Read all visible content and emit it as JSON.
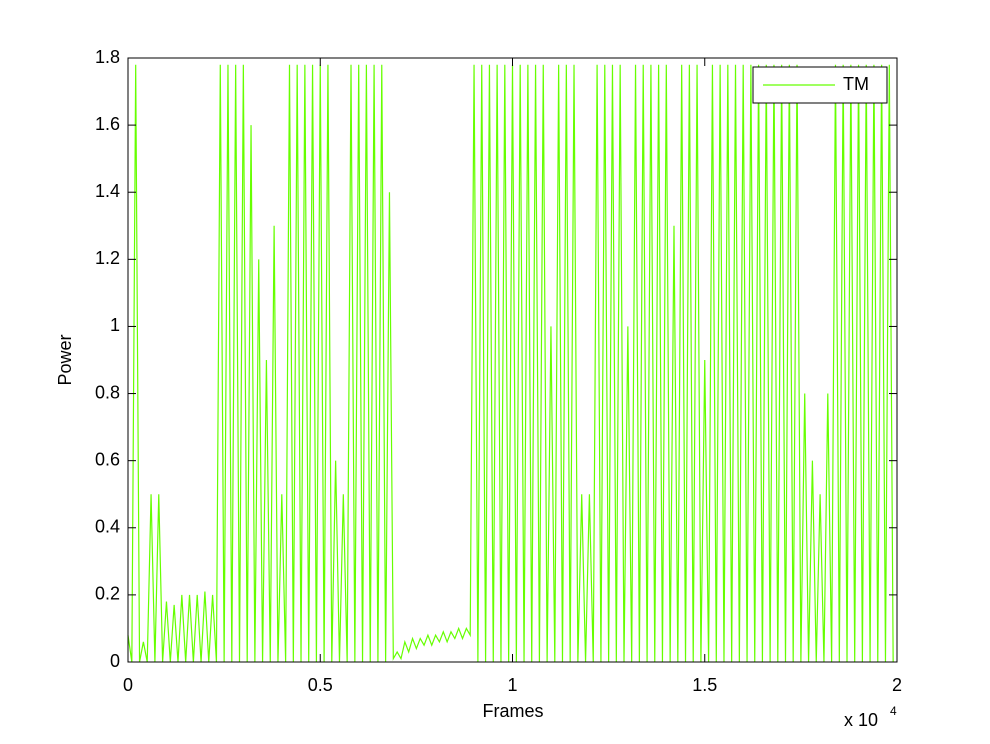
{
  "chart_data": {
    "type": "line",
    "xlabel": "Frames",
    "ylabel": "Power",
    "x_multiplier": "x 10",
    "x_multiplier_exp": "4",
    "x": [
      0,
      100,
      200,
      300,
      400,
      500,
      600,
      700,
      800,
      900,
      1000,
      1100,
      1200,
      1300,
      1400,
      1500,
      1600,
      1700,
      1800,
      1900,
      2000,
      2100,
      2200,
      2300,
      2400,
      2500,
      2600,
      2700,
      2800,
      2900,
      3000,
      3100,
      3200,
      3300,
      3400,
      3500,
      3600,
      3700,
      3800,
      3900,
      4000,
      4100,
      4200,
      4300,
      4400,
      4500,
      4600,
      4700,
      4800,
      4900,
      5000,
      5100,
      5200,
      5300,
      5400,
      5500,
      5600,
      5700,
      5800,
      5900,
      6000,
      6100,
      6200,
      6300,
      6400,
      6500,
      6600,
      6700,
      6800,
      6900,
      7000,
      7100,
      7200,
      7300,
      7400,
      7500,
      7600,
      7700,
      7800,
      7900,
      8000,
      8100,
      8200,
      8300,
      8400,
      8500,
      8600,
      8700,
      8800,
      8900,
      9000,
      9100,
      9200,
      9300,
      9400,
      9500,
      9600,
      9700,
      9800,
      9900,
      10000,
      10100,
      10200,
      10300,
      10400,
      10500,
      10600,
      10700,
      10800,
      10900,
      11000,
      11100,
      11200,
      11300,
      11400,
      11500,
      11600,
      11700,
      11800,
      11900,
      12000,
      12100,
      12200,
      12300,
      12400,
      12500,
      12600,
      12700,
      12800,
      12900,
      13000,
      13100,
      13200,
      13300,
      13400,
      13500,
      13600,
      13700,
      13800,
      13900,
      14000,
      14100,
      14200,
      14300,
      14400,
      14500,
      14600,
      14700,
      14800,
      14900,
      15000,
      15100,
      15200,
      15300,
      15400,
      15500,
      15600,
      15700,
      15800,
      15900,
      16000,
      16100,
      16200,
      16300,
      16400,
      16500,
      16600,
      16700,
      16800,
      16900,
      17000,
      17100,
      17200,
      17300,
      17400,
      17500,
      17600,
      17700,
      17800,
      17900,
      18000,
      18100,
      18200,
      18300,
      18400,
      18500,
      18600,
      18700,
      18800,
      18900,
      19000,
      19100,
      19200,
      19300,
      19400,
      19500,
      19600,
      19700,
      19800,
      19900
    ],
    "series": [
      {
        "name": "TM",
        "color": "#66ff00",
        "values": [
          0.08,
          0,
          1.78,
          0,
          0.06,
          0,
          0.5,
          0,
          0.5,
          0,
          0.18,
          0,
          0.17,
          0,
          0.2,
          0,
          0.2,
          0,
          0.2,
          0,
          0.21,
          0,
          0.2,
          0,
          1.78,
          0,
          1.78,
          0,
          1.78,
          0,
          1.78,
          0,
          1.6,
          0,
          1.2,
          0,
          0.9,
          0,
          1.3,
          0,
          0.5,
          0,
          1.78,
          0,
          1.78,
          0,
          1.78,
          0,
          1.78,
          0,
          1.78,
          0,
          1.78,
          0,
          0.6,
          0,
          0.5,
          0,
          1.78,
          0,
          1.78,
          0,
          1.78,
          0,
          1.78,
          0,
          1.78,
          0,
          1.4,
          0.01,
          0.03,
          0.01,
          0.06,
          0.03,
          0.07,
          0.04,
          0.07,
          0.05,
          0.08,
          0.05,
          0.08,
          0.06,
          0.09,
          0.06,
          0.09,
          0.07,
          0.1,
          0.07,
          0.1,
          0.08,
          1.78,
          0,
          1.78,
          0,
          1.78,
          0,
          1.78,
          0,
          1.78,
          0,
          1.78,
          0,
          1.78,
          0,
          1.78,
          0,
          1.78,
          0,
          1.78,
          0,
          1.0,
          0,
          1.78,
          0,
          1.78,
          0,
          1.78,
          0,
          0.5,
          0,
          0.5,
          0,
          1.78,
          0,
          1.78,
          0,
          1.78,
          0,
          1.78,
          0,
          1.0,
          0,
          1.78,
          0,
          1.78,
          0,
          1.78,
          0,
          1.78,
          0,
          1.78,
          0,
          1.3,
          0,
          1.78,
          0,
          1.78,
          0,
          1.78,
          0,
          0.9,
          0,
          1.78,
          0,
          1.78,
          0,
          1.78,
          0,
          1.78,
          0,
          1.78,
          0,
          1.78,
          0,
          1.78,
          0,
          1.78,
          0,
          1.78,
          0,
          1.78,
          0,
          1.78,
          0,
          1.78,
          0,
          0.8,
          0,
          0.6,
          0,
          0.5,
          0,
          0.8,
          0,
          1.78,
          0,
          1.78,
          0,
          1.78,
          0,
          1.78,
          0,
          1.78,
          0,
          1.78,
          0,
          1.78,
          0,
          1.78,
          0
        ]
      }
    ],
    "xlim": [
      0,
      20000
    ],
    "xticks": [
      0,
      {
        "value": 5000,
        "label": "0.5"
      },
      {
        "value": 10000,
        "label": "1"
      },
      {
        "value": 15000,
        "label": "1.5"
      },
      {
        "value": 20000,
        "label": "2"
      }
    ],
    "ylim": [
      0,
      1.8
    ],
    "yticks": [
      0,
      0.2,
      0.4,
      0.6,
      0.8,
      1,
      1.2,
      1.4,
      1.6,
      1.8
    ],
    "grid": false,
    "legend": "top-right"
  }
}
